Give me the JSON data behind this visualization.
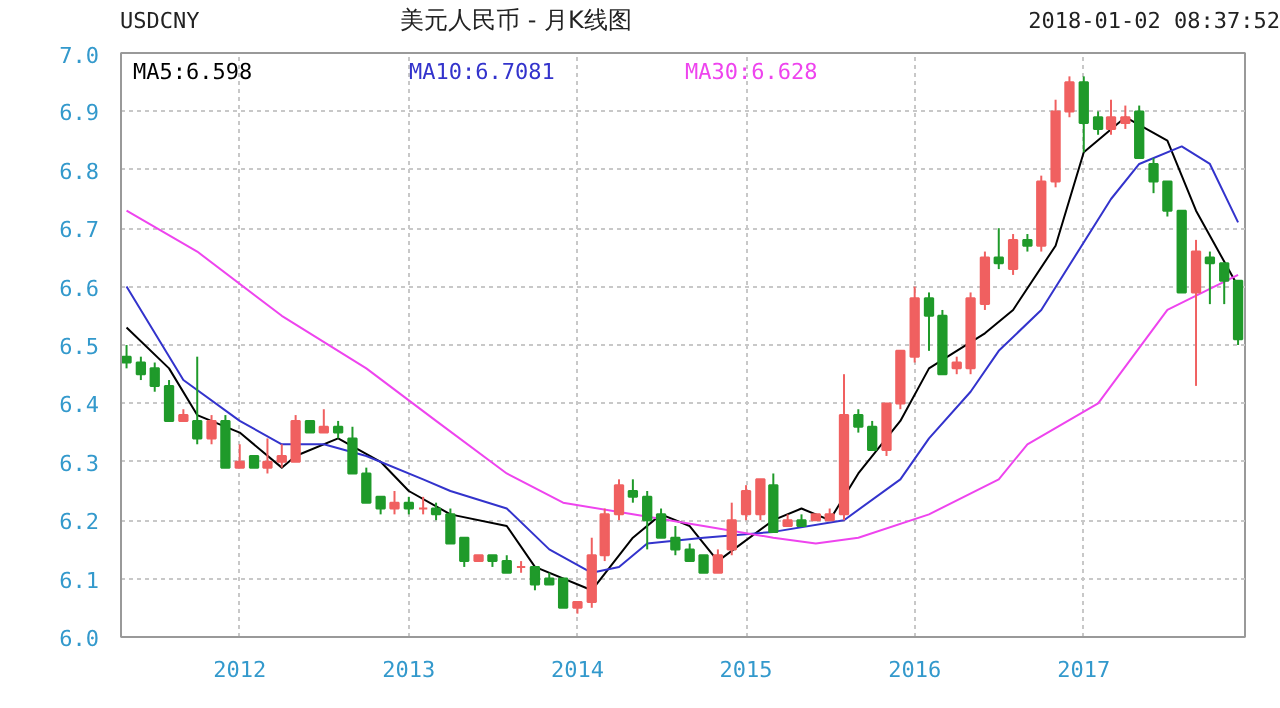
{
  "chart_data": {
    "type": "candlestick",
    "title": "美元人民币 - 月K线图",
    "subtitle": "USDCNY",
    "annotations": [
      "2018-01-02 08:37:52"
    ],
    "x": [
      "2011-05",
      "2011-06",
      "2011-07",
      "2011-08",
      "2011-09",
      "2011-10",
      "2011-11",
      "2011-12",
      "2012-01",
      "2012-02",
      "2012-03",
      "2012-04",
      "2012-05",
      "2012-06",
      "2012-07",
      "2012-08",
      "2012-09",
      "2012-10",
      "2012-11",
      "2012-12",
      "2013-01",
      "2013-02",
      "2013-03",
      "2013-04",
      "2013-05",
      "2013-06",
      "2013-07",
      "2013-08",
      "2013-09",
      "2013-10",
      "2013-11",
      "2013-12",
      "2014-01",
      "2014-02",
      "2014-03",
      "2014-04",
      "2014-05",
      "2014-06",
      "2014-07",
      "2014-08",
      "2014-09",
      "2014-10",
      "2014-11",
      "2014-12",
      "2015-01",
      "2015-02",
      "2015-03",
      "2015-04",
      "2015-05",
      "2015-06",
      "2015-07",
      "2015-08",
      "2015-09",
      "2015-10",
      "2015-11",
      "2015-12",
      "2016-01",
      "2016-02",
      "2016-03",
      "2016-04",
      "2016-05",
      "2016-06",
      "2016-07",
      "2016-08",
      "2016-09",
      "2016-10",
      "2016-11",
      "2016-12",
      "2017-01",
      "2017-02",
      "2017-03",
      "2017-04",
      "2017-05",
      "2017-06",
      "2017-07",
      "2017-08",
      "2017-09",
      "2017-10",
      "2017-11",
      "2017-12"
    ],
    "ohlc": [
      [
        6.48,
        6.5,
        6.46,
        6.47
      ],
      [
        6.47,
        6.48,
        6.44,
        6.45
      ],
      [
        6.46,
        6.47,
        6.42,
        6.43
      ],
      [
        6.43,
        6.44,
        6.37,
        6.37
      ],
      [
        6.37,
        6.39,
        6.37,
        6.38
      ],
      [
        6.37,
        6.48,
        6.33,
        6.34
      ],
      [
        6.34,
        6.38,
        6.33,
        6.37
      ],
      [
        6.37,
        6.38,
        6.29,
        6.29
      ],
      [
        6.29,
        6.33,
        6.29,
        6.3
      ],
      [
        6.31,
        6.31,
        6.29,
        6.29
      ],
      [
        6.29,
        6.34,
        6.28,
        6.3
      ],
      [
        6.3,
        6.33,
        6.29,
        6.31
      ],
      [
        6.3,
        6.38,
        6.3,
        6.37
      ],
      [
        6.37,
        6.37,
        6.35,
        6.35
      ],
      [
        6.35,
        6.39,
        6.35,
        6.36
      ],
      [
        6.36,
        6.37,
        6.34,
        6.35
      ],
      [
        6.34,
        6.36,
        6.28,
        6.28
      ],
      [
        6.28,
        6.29,
        6.23,
        6.23
      ],
      [
        6.24,
        6.24,
        6.21,
        6.22
      ],
      [
        6.22,
        6.25,
        6.21,
        6.23
      ],
      [
        6.23,
        6.24,
        6.21,
        6.22
      ],
      [
        6.22,
        6.24,
        6.21,
        6.22
      ],
      [
        6.22,
        6.23,
        6.2,
        6.21
      ],
      [
        6.21,
        6.22,
        6.16,
        6.16
      ],
      [
        6.17,
        6.17,
        6.12,
        6.13
      ],
      [
        6.13,
        6.14,
        6.13,
        6.14
      ],
      [
        6.14,
        6.14,
        6.12,
        6.13
      ],
      [
        6.13,
        6.14,
        6.11,
        6.11
      ],
      [
        6.12,
        6.13,
        6.11,
        6.12
      ],
      [
        6.12,
        6.12,
        6.08,
        6.09
      ],
      [
        6.1,
        6.11,
        6.09,
        6.09
      ],
      [
        6.1,
        6.1,
        6.05,
        6.05
      ],
      [
        6.05,
        6.06,
        6.04,
        6.06
      ],
      [
        6.06,
        6.17,
        6.05,
        6.14
      ],
      [
        6.14,
        6.22,
        6.13,
        6.21
      ],
      [
        6.21,
        6.27,
        6.2,
        6.26
      ],
      [
        6.25,
        6.27,
        6.23,
        6.24
      ],
      [
        6.24,
        6.25,
        6.15,
        6.2
      ],
      [
        6.21,
        6.22,
        6.17,
        6.17
      ],
      [
        6.17,
        6.19,
        6.14,
        6.15
      ],
      [
        6.15,
        6.16,
        6.13,
        6.13
      ],
      [
        6.14,
        6.14,
        6.11,
        6.11
      ],
      [
        6.11,
        6.15,
        6.11,
        6.14
      ],
      [
        6.15,
        6.23,
        6.14,
        6.2
      ],
      [
        6.21,
        6.26,
        6.2,
        6.25
      ],
      [
        6.21,
        6.27,
        6.2,
        6.27
      ],
      [
        6.26,
        6.28,
        6.18,
        6.18
      ],
      [
        6.19,
        6.21,
        6.19,
        6.2
      ],
      [
        6.2,
        6.21,
        6.19,
        6.19
      ],
      [
        6.2,
        6.21,
        6.2,
        6.21
      ],
      [
        6.2,
        6.22,
        6.2,
        6.21
      ],
      [
        6.21,
        6.45,
        6.2,
        6.38
      ],
      [
        6.38,
        6.39,
        6.35,
        6.36
      ],
      [
        6.36,
        6.37,
        6.32,
        6.32
      ],
      [
        6.32,
        6.4,
        6.31,
        6.4
      ],
      [
        6.4,
        6.49,
        6.39,
        6.49
      ],
      [
        6.48,
        6.6,
        6.47,
        6.58
      ],
      [
        6.58,
        6.59,
        6.49,
        6.55
      ],
      [
        6.55,
        6.56,
        6.45,
        6.45
      ],
      [
        6.46,
        6.48,
        6.45,
        6.47
      ],
      [
        6.46,
        6.59,
        6.45,
        6.58
      ],
      [
        6.57,
        6.66,
        6.56,
        6.65
      ],
      [
        6.65,
        6.7,
        6.63,
        6.64
      ],
      [
        6.63,
        6.69,
        6.62,
        6.68
      ],
      [
        6.68,
        6.69,
        6.66,
        6.67
      ],
      [
        6.67,
        6.79,
        6.66,
        6.78
      ],
      [
        6.78,
        6.92,
        6.77,
        6.9
      ],
      [
        6.9,
        6.96,
        6.89,
        6.95
      ],
      [
        6.95,
        6.96,
        6.83,
        6.88
      ],
      [
        6.89,
        6.9,
        6.86,
        6.87
      ],
      [
        6.87,
        6.92,
        6.86,
        6.89
      ],
      [
        6.88,
        6.91,
        6.87,
        6.89
      ],
      [
        6.9,
        6.91,
        6.82,
        6.82
      ],
      [
        6.81,
        6.82,
        6.76,
        6.78
      ],
      [
        6.78,
        6.78,
        6.72,
        6.73
      ],
      [
        6.73,
        6.73,
        6.59,
        6.59
      ],
      [
        6.59,
        6.68,
        6.43,
        6.66
      ],
      [
        6.65,
        6.66,
        6.57,
        6.64
      ],
      [
        6.64,
        6.64,
        6.57,
        6.61
      ],
      [
        6.61,
        6.61,
        6.5,
        6.51
      ]
    ],
    "colors": [
      "#1f9a2a",
      "#1f9a2a",
      "#1f9a2a",
      "#1f9a2a",
      "#f06060",
      "#1f9a2a",
      "#f06060",
      "#1f9a2a",
      "#f06060",
      "#1f9a2a",
      "#f06060",
      "#f06060",
      "#f06060",
      "#1f9a2a",
      "#f06060",
      "#1f9a2a",
      "#1f9a2a",
      "#1f9a2a",
      "#1f9a2a",
      "#f06060",
      "#1f9a2a",
      "#f06060",
      "#1f9a2a",
      "#1f9a2a",
      "#1f9a2a",
      "#f06060",
      "#1f9a2a",
      "#1f9a2a",
      "#f06060",
      "#1f9a2a",
      "#1f9a2a",
      "#1f9a2a",
      "#f06060",
      "#f06060",
      "#f06060",
      "#f06060",
      "#1f9a2a",
      "#1f9a2a",
      "#1f9a2a",
      "#1f9a2a",
      "#1f9a2a",
      "#1f9a2a",
      "#f06060",
      "#f06060",
      "#f06060",
      "#f06060",
      "#1f9a2a",
      "#f06060",
      "#1f9a2a",
      "#f06060",
      "#f06060",
      "#f06060",
      "#1f9a2a",
      "#1f9a2a",
      "#f06060",
      "#f06060",
      "#f06060",
      "#1f9a2a",
      "#1f9a2a",
      "#f06060",
      "#f06060",
      "#f06060",
      "#1f9a2a",
      "#f06060",
      "#1f9a2a",
      "#f06060",
      "#f06060",
      "#f06060",
      "#1f9a2a",
      "#1f9a2a",
      "#f06060",
      "#f06060",
      "#1f9a2a",
      "#1f9a2a",
      "#1f9a2a",
      "#1f9a2a",
      "#f06060",
      "#1f9a2a",
      "#1f9a2a",
      "#1f9a2a"
    ],
    "series": [
      {
        "type": "line",
        "name": "MA5:6.598",
        "color": "#000000",
        "x": [
          "2011-05",
          "2011-08",
          "2011-10",
          "2012-01",
          "2012-04",
          "2012-05",
          "2012-08",
          "2012-11",
          "2013-01",
          "2013-04",
          "2013-08",
          "2013-10",
          "2014-02",
          "2014-05",
          "2014-07",
          "2014-09",
          "2014-11",
          "2015-03",
          "2015-05",
          "2015-07",
          "2015-09",
          "2015-12",
          "2016-02",
          "2016-04",
          "2016-06",
          "2016-08",
          "2016-11",
          "2017-01",
          "2017-04",
          "2017-07",
          "2017-09",
          "2017-12"
        ],
        "values": [
          6.53,
          6.46,
          6.38,
          6.35,
          6.29,
          6.31,
          6.34,
          6.3,
          6.25,
          6.21,
          6.19,
          6.12,
          6.08,
          6.17,
          6.21,
          6.19,
          6.13,
          6.2,
          6.22,
          6.2,
          6.28,
          6.37,
          6.46,
          6.49,
          6.52,
          6.56,
          6.67,
          6.83,
          6.89,
          6.85,
          6.73,
          6.6
        ]
      },
      {
        "type": "line",
        "name": "MA10:6.7081",
        "color": "#3333cc",
        "x": [
          "2011-05",
          "2011-09",
          "2012-01",
          "2012-04",
          "2012-07",
          "2012-10",
          "2013-02",
          "2013-04",
          "2013-08",
          "2013-11",
          "2014-02",
          "2014-04",
          "2014-06",
          "2014-10",
          "2015-03",
          "2015-08",
          "2015-12",
          "2016-02",
          "2016-05",
          "2016-07",
          "2016-10",
          "2017-03",
          "2017-05",
          "2017-08",
          "2017-10",
          "2017-12"
        ],
        "values": [
          6.6,
          6.44,
          6.37,
          6.33,
          6.33,
          6.31,
          6.27,
          6.25,
          6.22,
          6.15,
          6.11,
          6.12,
          6.16,
          6.17,
          6.18,
          6.2,
          6.27,
          6.34,
          6.42,
          6.49,
          6.56,
          6.75,
          6.81,
          6.84,
          6.81,
          6.71
        ]
      },
      {
        "type": "line",
        "name": "MA30:6.628",
        "color": "#ee44ee",
        "x": [
          "2011-05",
          "2011-10",
          "2012-04",
          "2012-10",
          "2013-03",
          "2013-08",
          "2013-12",
          "2014-05",
          "2014-10",
          "2015-03",
          "2015-06",
          "2015-09",
          "2016-02",
          "2016-07",
          "2016-09",
          "2017-02",
          "2017-07",
          "2017-12"
        ],
        "values": [
          6.73,
          6.66,
          6.55,
          6.46,
          6.37,
          6.28,
          6.23,
          6.21,
          6.19,
          6.17,
          6.16,
          6.17,
          6.21,
          6.27,
          6.33,
          6.4,
          6.56,
          6.62
        ]
      }
    ],
    "xlim": [
      "2011-04-19",
      "2017-12-16"
    ],
    "xticks": [
      "2012",
      "2013",
      "2014",
      "2015",
      "2016",
      "2017"
    ],
    "ylim": [
      6.0,
      7.0
    ],
    "yticks": [
      {
        "value": 6.0,
        "label": "6.0"
      },
      {
        "value": 6.1,
        "label": "6.1"
      },
      {
        "value": 6.2,
        "label": "6.2"
      },
      {
        "value": 6.3,
        "label": "6.3"
      },
      {
        "value": 6.4,
        "label": "6.4"
      },
      {
        "value": 6.5,
        "label": "6.5"
      },
      {
        "value": 6.6,
        "label": "6.6"
      },
      {
        "value": 6.7,
        "label": "6.7"
      },
      {
        "value": 6.8,
        "label": "6.8"
      },
      {
        "value": 6.9,
        "label": "6.9"
      },
      {
        "value": 7.0,
        "label": "7.0"
      }
    ],
    "grid": true,
    "legend": "top left"
  }
}
